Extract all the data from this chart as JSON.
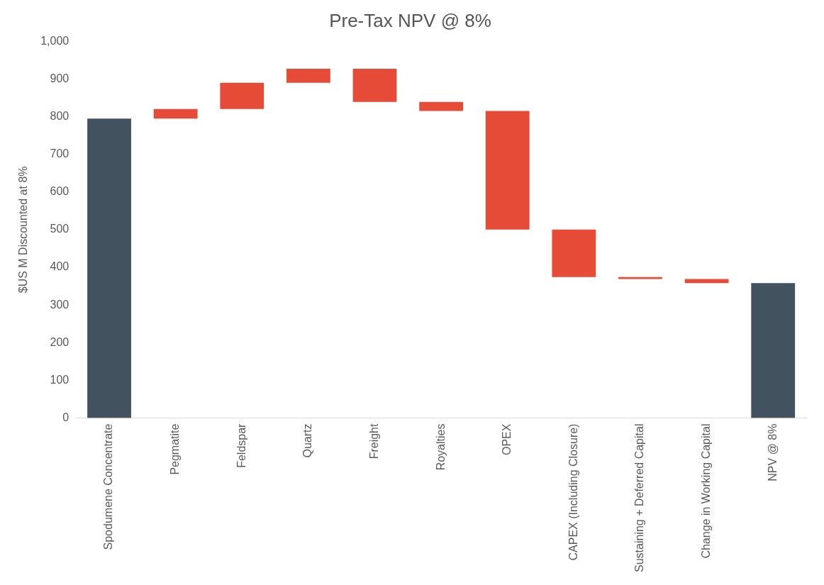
{
  "chart_data": {
    "type": "bar",
    "title": "Pre-Tax NPV @ 8%",
    "ylabel": "$US M Discounted at 8%",
    "categories": [
      "Spodumene Concentrate",
      "Pegmatite",
      "Feldspar",
      "Quartz",
      "Freight",
      "Royalties",
      "OPEX",
      "CAPEX (Including Closure)",
      "Sustaining + Deferred Capital",
      "Change in Working Capital",
      "NPV @ 8%"
    ],
    "values": [
      795,
      25,
      70,
      37,
      -88,
      -24,
      -315,
      -126,
      -5,
      -11,
      358
    ],
    "base": [
      0,
      795,
      820,
      890,
      927,
      839,
      815,
      500,
      374,
      369,
      0
    ],
    "colors": [
      "#43525f",
      "#e64b38",
      "#e64b38",
      "#e64b38",
      "#e64b38",
      "#e64b38",
      "#e64b38",
      "#e64b38",
      "#e64b38",
      "#e64b38",
      "#43525f"
    ],
    "ylim": [
      0,
      1000
    ],
    "yticks": [
      {
        "value": 0,
        "label": "0"
      },
      {
        "value": 100,
        "label": "100"
      },
      {
        "value": 200,
        "label": "200"
      },
      {
        "value": 300,
        "label": "300"
      },
      {
        "value": 400,
        "label": "400"
      },
      {
        "value": 500,
        "label": "500"
      },
      {
        "value": 600,
        "label": "600"
      },
      {
        "value": 700,
        "label": "700"
      },
      {
        "value": 800,
        "label": "800"
      },
      {
        "value": 900,
        "label": "900"
      },
      {
        "value": 1000,
        "label": "1,000"
      }
    ],
    "grid": false,
    "legend": false
  }
}
